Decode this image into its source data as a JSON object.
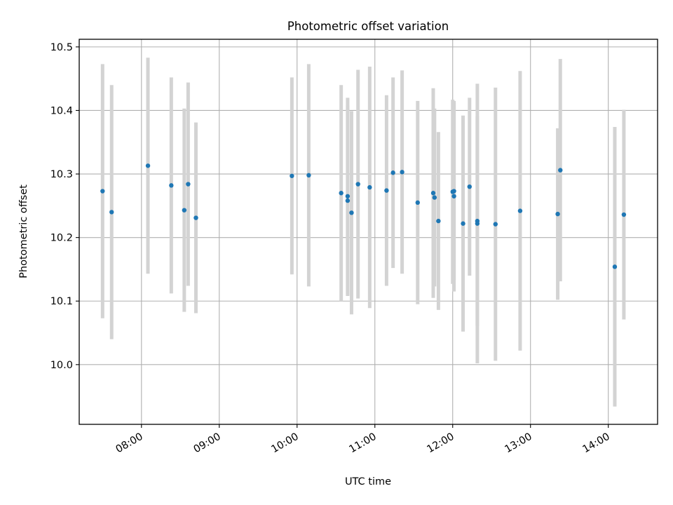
{
  "chart_data": {
    "type": "scatter",
    "title": "Photometric offset variation",
    "xlabel": "UTC time",
    "ylabel": "Photometric offset",
    "xlim": [
      "07:12",
      "14:38"
    ],
    "ylim": [
      9.906,
      10.512
    ],
    "x_ticks": [
      "08:00",
      "09:00",
      "10:00",
      "11:00",
      "12:00",
      "13:00",
      "14:00"
    ],
    "y_ticks": [
      "10.0",
      "10.1",
      "10.2",
      "10.3",
      "10.4",
      "10.5"
    ],
    "grid": true,
    "colors": {
      "points": "#1f77b4",
      "errorbars": "#d3d3d3",
      "grid": "#b0b0b0"
    },
    "series": [
      {
        "points": [
          {
            "x": "07:30",
            "y": 10.273,
            "yerr": [
              0.2,
              0.2
            ]
          },
          {
            "x": "07:37",
            "y": 10.24,
            "yerr": [
              0.2,
              0.2
            ]
          },
          {
            "x": "08:05",
            "y": 10.313,
            "yerr": [
              0.17,
              0.17
            ]
          },
          {
            "x": "08:23",
            "y": 10.282,
            "yerr": [
              0.17,
              0.17
            ]
          },
          {
            "x": "08:33",
            "y": 10.243,
            "yerr": [
              0.16,
              0.16
            ]
          },
          {
            "x": "08:36",
            "y": 10.284,
            "yerr": [
              0.16,
              0.16
            ]
          },
          {
            "x": "08:42",
            "y": 10.231,
            "yerr": [
              0.15,
              0.15
            ]
          },
          {
            "x": "09:56",
            "y": 10.297,
            "yerr": [
              0.155,
              0.155
            ]
          },
          {
            "x": "10:09",
            "y": 10.298,
            "yerr": [
              0.175,
              0.175
            ]
          },
          {
            "x": "10:34",
            "y": 10.27,
            "yerr": [
              0.17,
              0.17
            ]
          },
          {
            "x": "10:39",
            "y": 10.265,
            "yerr": [
              0.155,
              0.155
            ]
          },
          {
            "x": "10:39",
            "y": 10.258,
            "yerr": [
              0.15,
              0.15
            ]
          },
          {
            "x": "10:42",
            "y": 10.239,
            "yerr": [
              0.16,
              0.16
            ]
          },
          {
            "x": "10:47",
            "y": 10.284,
            "yerr": [
              0.18,
              0.18
            ]
          },
          {
            "x": "10:56",
            "y": 10.279,
            "yerr": [
              0.19,
              0.19
            ]
          },
          {
            "x": "11:09",
            "y": 10.274,
            "yerr": [
              0.15,
              0.15
            ]
          },
          {
            "x": "11:14",
            "y": 10.302,
            "yerr": [
              0.15,
              0.15
            ]
          },
          {
            "x": "11:21",
            "y": 10.303,
            "yerr": [
              0.16,
              0.16
            ]
          },
          {
            "x": "11:33",
            "y": 10.255,
            "yerr": [
              0.16,
              0.16
            ]
          },
          {
            "x": "11:45",
            "y": 10.27,
            "yerr": [
              0.165,
              0.165
            ]
          },
          {
            "x": "11:46",
            "y": 10.263,
            "yerr": [
              0.14,
              0.14
            ]
          },
          {
            "x": "11:49",
            "y": 10.226,
            "yerr": [
              0.14,
              0.14
            ]
          },
          {
            "x": "12:00",
            "y": 10.272,
            "yerr": [
              0.145,
              0.145
            ]
          },
          {
            "x": "12:01",
            "y": 10.273,
            "yerr": [
              0.14,
              0.14
            ]
          },
          {
            "x": "12:01",
            "y": 10.265,
            "yerr": [
              0.15,
              0.15
            ]
          },
          {
            "x": "12:08",
            "y": 10.222,
            "yerr": [
              0.17,
              0.17
            ]
          },
          {
            "x": "12:13",
            "y": 10.28,
            "yerr": [
              0.14,
              0.14
            ]
          },
          {
            "x": "12:19",
            "y": 10.226,
            "yerr": [
              0.165,
              0.165
            ]
          },
          {
            "x": "12:19",
            "y": 10.222,
            "yerr": [
              0.22,
              0.22
            ]
          },
          {
            "x": "12:33",
            "y": 10.221,
            "yerr": [
              0.215,
              0.215
            ]
          },
          {
            "x": "12:52",
            "y": 10.242,
            "yerr": [
              0.22,
              0.22
            ]
          },
          {
            "x": "13:21",
            "y": 10.237,
            "yerr": [
              0.135,
              0.135
            ]
          },
          {
            "x": "13:23",
            "y": 10.306,
            "yerr": [
              0.175,
              0.175
            ]
          },
          {
            "x": "14:05",
            "y": 10.154,
            "yerr": [
              0.22,
              0.22
            ]
          },
          {
            "x": "14:12",
            "y": 10.236,
            "yerr": [
              0.165,
              0.165
            ]
          }
        ]
      }
    ]
  }
}
